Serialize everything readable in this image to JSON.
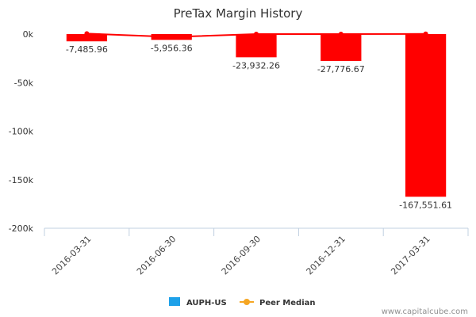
{
  "chart_data": {
    "type": "bar",
    "title": "PreTax Margin History",
    "categories": [
      "2016-03-31",
      "2016-06-30",
      "2016-09-30",
      "2016-12-31",
      "2017-03-31"
    ],
    "series": [
      {
        "name": "AUPH-US",
        "kind": "bar",
        "values": [
          -7485.96,
          -5956.36,
          -23932.26,
          -27776.67,
          -167551.61
        ],
        "data_labels": [
          "-7,485.96",
          "-5,956.36",
          "-23,932.26",
          "-27,776.67",
          "-167,551.61"
        ],
        "legend_color": "#1ea1e9",
        "bar_color": "#ff0000"
      },
      {
        "name": "Peer Median",
        "kind": "line",
        "values": [
          500,
          -3000,
          0,
          0,
          200
        ],
        "color": "#f5a623",
        "line_color": "#ff0000"
      }
    ],
    "ylim": [
      -200000,
      0
    ],
    "yticks": [
      0,
      -50000,
      -100000,
      -150000,
      -200000
    ],
    "ytick_labels": [
      "0k",
      "-50k",
      "-100k",
      "-150k",
      "-200k"
    ],
    "grid": false,
    "legend_position": "bottom"
  },
  "credit": "www.capitalcube.com"
}
